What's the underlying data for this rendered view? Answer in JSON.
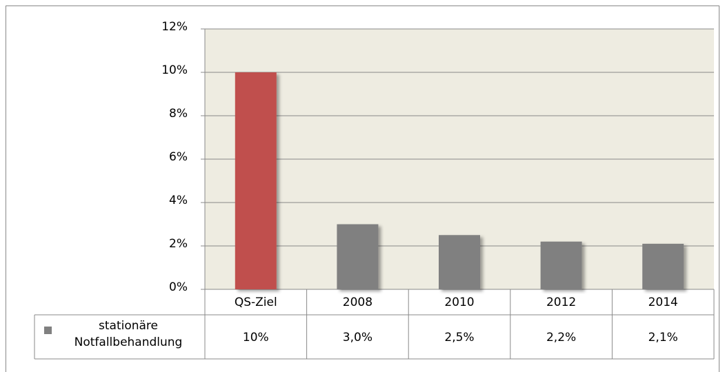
{
  "chart_data": {
    "type": "bar",
    "categories": [
      "QS-Ziel",
      "2008",
      "2010",
      "2012",
      "2014"
    ],
    "series": [
      {
        "name": "stationäre Notfallbehandlung",
        "color": "#808080",
        "point_colors": [
          "#c0504d",
          "#808080",
          "#808080",
          "#808080",
          "#808080"
        ],
        "values": [
          10,
          3.0,
          2.5,
          2.2,
          2.1
        ],
        "value_labels": [
          "10%",
          "3,0%",
          "2,5%",
          "2,2%",
          "2,1%"
        ]
      }
    ],
    "ylim": [
      0,
      12
    ],
    "yticks": [
      {
        "value": 0,
        "label": "0%"
      },
      {
        "value": 2,
        "label": "2%"
      },
      {
        "value": 4,
        "label": "4%"
      },
      {
        "value": 6,
        "label": "6%"
      },
      {
        "value": 8,
        "label": "8%"
      },
      {
        "value": 10,
        "label": "10%"
      },
      {
        "value": 12,
        "label": "12%"
      }
    ],
    "grid": true,
    "plot_background": "#eeece1"
  }
}
